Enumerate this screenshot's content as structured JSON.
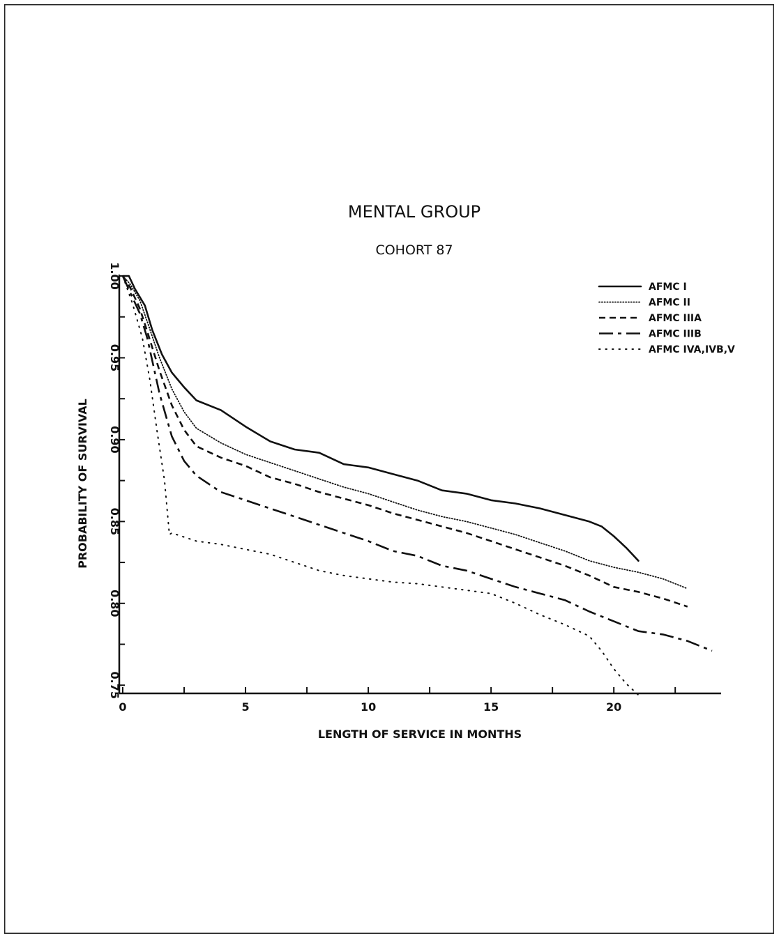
{
  "chart_data": {
    "type": "line",
    "title": "MENTAL GROUP",
    "subtitle": "COHORT 87",
    "xlabel": "LENGTH OF SERVICE IN MONTHS",
    "ylabel": "PROBABILITY OF SURVIVAL",
    "xlim": [
      0,
      24
    ],
    "ylim": [
      0.745,
      1.0
    ],
    "x_ticks": [
      0,
      5,
      10,
      15,
      20
    ],
    "x_tick_labels": [
      "0",
      "5",
      "10",
      "15",
      "20"
    ],
    "y_ticks": [
      0.75,
      0.8,
      0.85,
      0.9,
      0.95,
      1.0
    ],
    "y_tick_labels": [
      "0.75",
      "0.80",
      "0.85",
      "0.90",
      "0.95",
      "1.00"
    ],
    "grid": false,
    "legend_position": "top-right",
    "series": [
      {
        "name": "AFMC I",
        "style": "solid",
        "points": [
          [
            0,
            1.0
          ],
          [
            0.25,
            1.0
          ],
          [
            0.5,
            0.992
          ],
          [
            0.9,
            0.982
          ],
          [
            1.2,
            0.967
          ],
          [
            1.6,
            0.952
          ],
          [
            2,
            0.941
          ],
          [
            2.5,
            0.932
          ],
          [
            3,
            0.924
          ],
          [
            4,
            0.918
          ],
          [
            5,
            0.908
          ],
          [
            6,
            0.899
          ],
          [
            7,
            0.894
          ],
          [
            8,
            0.892
          ],
          [
            9,
            0.885
          ],
          [
            10,
            0.883
          ],
          [
            11,
            0.879
          ],
          [
            12,
            0.875
          ],
          [
            13,
            0.869
          ],
          [
            14,
            0.867
          ],
          [
            15,
            0.863
          ],
          [
            16,
            0.861
          ],
          [
            17,
            0.858
          ],
          [
            18,
            0.854
          ],
          [
            19,
            0.85
          ],
          [
            19.5,
            0.847
          ],
          [
            20,
            0.841
          ],
          [
            20.5,
            0.834
          ],
          [
            21,
            0.826
          ]
        ]
      },
      {
        "name": "AFMC II",
        "style": "dotted",
        "points": [
          [
            0,
            1.0
          ],
          [
            0.3,
            0.995
          ],
          [
            0.7,
            0.985
          ],
          [
            1,
            0.972
          ],
          [
            1.5,
            0.95
          ],
          [
            2,
            0.931
          ],
          [
            2.5,
            0.917
          ],
          [
            3,
            0.907
          ],
          [
            4,
            0.898
          ],
          [
            5,
            0.891
          ],
          [
            6,
            0.886
          ],
          [
            7,
            0.881
          ],
          [
            8,
            0.876
          ],
          [
            9,
            0.871
          ],
          [
            10,
            0.867
          ],
          [
            11,
            0.862
          ],
          [
            12,
            0.857
          ],
          [
            13,
            0.853
          ],
          [
            14,
            0.85
          ],
          [
            15,
            0.846
          ],
          [
            16,
            0.842
          ],
          [
            17,
            0.837
          ],
          [
            18,
            0.832
          ],
          [
            19,
            0.826
          ],
          [
            20,
            0.822
          ],
          [
            21,
            0.819
          ],
          [
            22,
            0.815
          ],
          [
            23,
            0.809
          ]
        ]
      },
      {
        "name": "AFMC IIIA",
        "style": "dashed",
        "points": [
          [
            0,
            1.0
          ],
          [
            0.3,
            0.993
          ],
          [
            0.7,
            0.98
          ],
          [
            1,
            0.966
          ],
          [
            1.5,
            0.942
          ],
          [
            2,
            0.921
          ],
          [
            2.5,
            0.906
          ],
          [
            3,
            0.896
          ],
          [
            4,
            0.889
          ],
          [
            5,
            0.884
          ],
          [
            6,
            0.877
          ],
          [
            7,
            0.873
          ],
          [
            8,
            0.868
          ],
          [
            9,
            0.864
          ],
          [
            10,
            0.86
          ],
          [
            11,
            0.855
          ],
          [
            12,
            0.851
          ],
          [
            13,
            0.847
          ],
          [
            14,
            0.843
          ],
          [
            15,
            0.838
          ],
          [
            16,
            0.833
          ],
          [
            17,
            0.828
          ],
          [
            18,
            0.823
          ],
          [
            19,
            0.817
          ],
          [
            20,
            0.81
          ],
          [
            21,
            0.807
          ],
          [
            22,
            0.803
          ],
          [
            23,
            0.798
          ]
        ]
      },
      {
        "name": "AFMC IIIB",
        "style": "dashdot",
        "points": [
          [
            0,
            1.0
          ],
          [
            0.3,
            0.99
          ],
          [
            0.7,
            0.977
          ],
          [
            1,
            0.962
          ],
          [
            1.5,
            0.928
          ],
          [
            2,
            0.902
          ],
          [
            2.5,
            0.887
          ],
          [
            3,
            0.878
          ],
          [
            4,
            0.868
          ],
          [
            5,
            0.863
          ],
          [
            6,
            0.858
          ],
          [
            7,
            0.853
          ],
          [
            8,
            0.848
          ],
          [
            9,
            0.843
          ],
          [
            10,
            0.838
          ],
          [
            11,
            0.832
          ],
          [
            12,
            0.829
          ],
          [
            13,
            0.823
          ],
          [
            14,
            0.82
          ],
          [
            15,
            0.815
          ],
          [
            16,
            0.81
          ],
          [
            17,
            0.806
          ],
          [
            18,
            0.802
          ],
          [
            19,
            0.795
          ],
          [
            20,
            0.789
          ],
          [
            21,
            0.783
          ],
          [
            22,
            0.781
          ],
          [
            23,
            0.777
          ],
          [
            24,
            0.771
          ]
        ]
      },
      {
        "name": "AFMC IVA,IVB,V",
        "style": "sparse-dotted",
        "points": [
          [
            0,
            1.0
          ],
          [
            0.4,
            0.983
          ],
          [
            0.8,
            0.962
          ],
          [
            1.1,
            0.937
          ],
          [
            1.4,
            0.905
          ],
          [
            1.7,
            0.875
          ],
          [
            1.9,
            0.842
          ],
          [
            2,
            0.843
          ],
          [
            3,
            0.838
          ],
          [
            4,
            0.836
          ],
          [
            5,
            0.833
          ],
          [
            6,
            0.83
          ],
          [
            7,
            0.825
          ],
          [
            8,
            0.82
          ],
          [
            9,
            0.817
          ],
          [
            10,
            0.815
          ],
          [
            11,
            0.813
          ],
          [
            12,
            0.812
          ],
          [
            13,
            0.81
          ],
          [
            14,
            0.808
          ],
          [
            15,
            0.806
          ],
          [
            16,
            0.8
          ],
          [
            17,
            0.793
          ],
          [
            18,
            0.787
          ],
          [
            19,
            0.78
          ],
          [
            19.5,
            0.771
          ],
          [
            20,
            0.76
          ],
          [
            20.5,
            0.751
          ],
          [
            21,
            0.744
          ]
        ]
      }
    ]
  }
}
